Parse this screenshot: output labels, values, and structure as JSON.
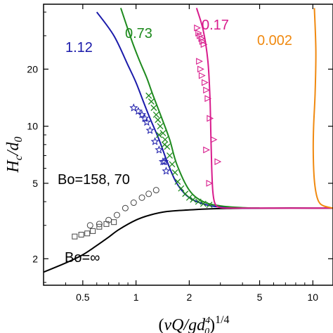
{
  "chart_data": {
    "type": "line",
    "xlabel": "(νQ/gd₀⁴)^1/4",
    "ylabel": "H_c/d₀",
    "xscale": "log",
    "yscale": "log",
    "xlim": [
      0.3,
      13
    ],
    "ylim": [
      1.45,
      44
    ],
    "x_ticks": [
      "0.5",
      "1",
      "2",
      "5",
      "10"
    ],
    "y_ticks": [
      "2",
      "5",
      "10",
      "20"
    ],
    "annotations": [
      {
        "text": "1.12",
        "color": "#1a1aaa"
      },
      {
        "text": "0.73",
        "color": "#1e8a1e"
      },
      {
        "text": "0.17",
        "color": "#d81b8c"
      },
      {
        "text": "0.002",
        "color": "#f0890f"
      },
      {
        "text": "Bo=158, 70",
        "color": "#000000"
      },
      {
        "text": "Bo=∞",
        "color": "#000000"
      }
    ],
    "series": [
      {
        "color": "#000000",
        "kind": "line",
        "x": [
          0.3,
          0.4,
          0.5,
          0.6,
          0.7,
          0.8,
          1.0,
          1.2,
          1.5,
          2.0,
          2.5,
          3.0,
          4.0,
          6.0,
          10.0,
          13.0
        ],
        "y": [
          1.7,
          1.9,
          2.1,
          2.35,
          2.6,
          2.85,
          3.2,
          3.4,
          3.55,
          3.62,
          3.66,
          3.68,
          3.69,
          3.7,
          3.7,
          3.7
        ]
      },
      {
        "color": "#1a1aaa",
        "kind": "line",
        "x": [
          0.6,
          0.75,
          0.9,
          1.0,
          1.1,
          1.2,
          1.35,
          1.5,
          1.7,
          2.0,
          2.5,
          3.0,
          4.0,
          5.0
        ],
        "y": [
          40,
          30,
          21,
          17,
          13.5,
          11,
          8.5,
          6.5,
          5.0,
          4.2,
          3.85,
          3.75,
          3.7,
          3.7
        ]
      },
      {
        "color": "#1e8a1e",
        "kind": "line",
        "x": [
          0.82,
          0.95,
          1.05,
          1.15,
          1.25,
          1.4,
          1.55,
          1.7,
          2.0,
          2.4,
          3.0,
          4.0,
          5.0
        ],
        "y": [
          42,
          28,
          22,
          18,
          14.5,
          11,
          8.5,
          6.3,
          4.6,
          4.0,
          3.8,
          3.72,
          3.7
        ]
      },
      {
        "color": "#d81b8c",
        "kind": "line",
        "x": [
          2.2,
          2.4,
          2.55,
          2.62,
          2.65,
          2.68,
          2.72,
          2.8,
          3.0,
          3.5,
          4.5,
          6.0,
          13.0
        ],
        "y": [
          42,
          32,
          22,
          14,
          9,
          6,
          4.5,
          3.9,
          3.72,
          3.7,
          3.7,
          3.7,
          3.7
        ]
      },
      {
        "color": "#f0890f",
        "kind": "line",
        "x": [
          10.2,
          10.4,
          10.3,
          10.1,
          10.05,
          10.15,
          10.4,
          10.8,
          11.5,
          13.0
        ],
        "y": [
          42,
          25,
          15,
          10,
          7.5,
          5.5,
          4.5,
          4.0,
          3.8,
          3.7
        ]
      },
      {
        "color": "#1a1aaa",
        "kind": "marker",
        "marker": "star",
        "x": [
          0.97,
          1.03,
          1.08,
          1.12,
          1.15,
          1.2,
          1.28,
          1.35,
          1.42,
          1.45,
          1.48
        ],
        "y": [
          12.5,
          12,
          11.5,
          11,
          10.5,
          9.5,
          8.3,
          7.5,
          6.5,
          6.5,
          5.8
        ]
      },
      {
        "color": "#1e8a1e",
        "kind": "marker",
        "marker": "x",
        "x": [
          1.18,
          1.22,
          1.26,
          1.3,
          1.33,
          1.37,
          1.42,
          1.46,
          1.5,
          1.55,
          1.6,
          1.66,
          1.72,
          1.8,
          1.9,
          2.0,
          2.1,
          2.25,
          2.4,
          2.6,
          1.35,
          1.45
        ],
        "y": [
          14.5,
          13.5,
          12.5,
          11.5,
          10.8,
          10,
          9.2,
          8.5,
          7.8,
          7,
          6.3,
          5.7,
          5.1,
          4.7,
          4.4,
          4.2,
          4.1,
          4.0,
          3.9,
          3.85,
          9.0,
          8.0
        ]
      },
      {
        "color": "#d81b8c",
        "kind": "marker",
        "marker": "triangle",
        "x": [
          2.22,
          2.26,
          2.3,
          2.35,
          2.38,
          2.42,
          2.28,
          2.32,
          2.36,
          2.45,
          2.5,
          2.55,
          2.62,
          2.75,
          2.9,
          2.5,
          2.6
        ],
        "y": [
          33,
          31,
          30,
          29,
          28,
          27,
          22,
          20,
          18.5,
          17,
          15.5,
          14,
          11,
          8.5,
          6.5,
          7.5,
          5.0
        ]
      },
      {
        "color": "#000000",
        "kind": "marker",
        "marker": "square",
        "x": [
          0.45,
          0.49,
          0.53,
          0.57,
          0.62,
          0.68,
          0.75
        ],
        "y": [
          2.62,
          2.68,
          2.72,
          2.8,
          2.95,
          3.05,
          3.12
        ]
      },
      {
        "color": "#000000",
        "kind": "marker",
        "marker": "circle",
        "x": [
          0.55,
          0.62,
          0.7,
          0.78,
          0.87,
          0.97,
          1.08,
          1.18,
          1.3
        ],
        "y": [
          3.0,
          3.05,
          3.2,
          3.4,
          3.7,
          3.95,
          4.2,
          4.4,
          4.6
        ]
      }
    ]
  }
}
